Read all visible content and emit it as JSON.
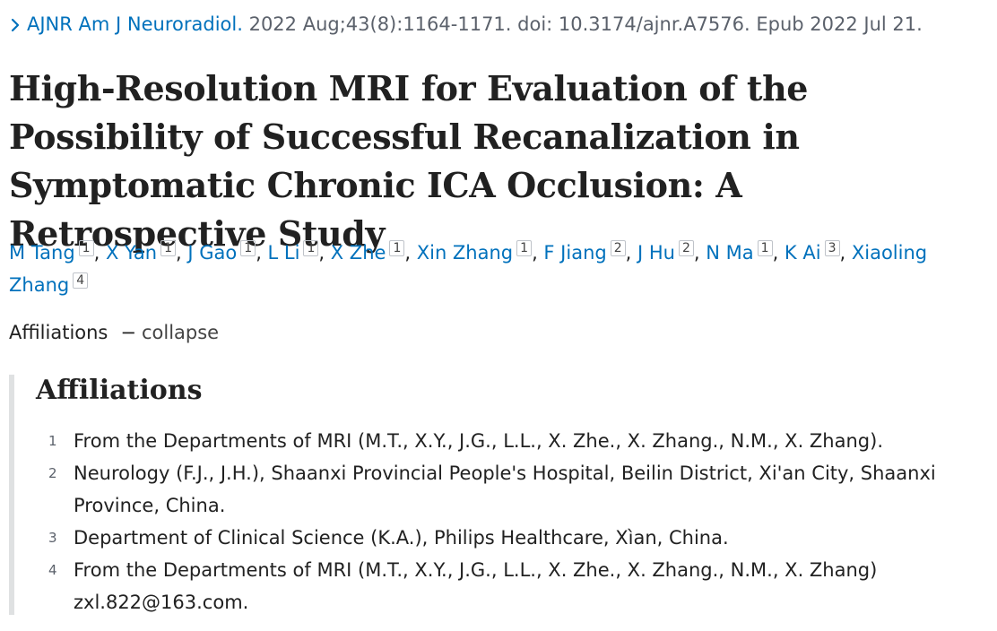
{
  "citation": {
    "journal": "AJNR Am J Neuroradiol.",
    "details": "2022 Aug;43(8):1164-1171. doi: 10.3174/ajnr.A7576. Epub 2022 Jul 21."
  },
  "title": "High-Resolution MRI for Evaluation of the Possibility of Successful Recanalization in Symptomatic Chronic ICA Occlusion: A Retrospective Study",
  "authors": [
    {
      "name": "M Tang",
      "aff": "1"
    },
    {
      "name": "X Yan",
      "aff": "1"
    },
    {
      "name": "J Gao",
      "aff": "1"
    },
    {
      "name": "L Li",
      "aff": "1"
    },
    {
      "name": "X Zhe",
      "aff": "1"
    },
    {
      "name": "Xin Zhang",
      "aff": "1"
    },
    {
      "name": "F Jiang",
      "aff": "2"
    },
    {
      "name": "J Hu",
      "aff": "2"
    },
    {
      "name": "N Ma",
      "aff": "1"
    },
    {
      "name": "K Ai",
      "aff": "3"
    },
    {
      "name": "Xiaoling Zhang",
      "aff": "4"
    }
  ],
  "affiliations_toggle": {
    "label": "Affiliations",
    "dash": "−",
    "action": "collapse"
  },
  "affiliations": {
    "heading": "Affiliations",
    "items": [
      {
        "num": "1",
        "text": "From the Departments of MRI (M.T., X.Y., J.G., L.L., X. Zhe., X. Zhang., N.M., X. Zhang)."
      },
      {
        "num": "2",
        "text": "Neurology (F.J., J.H.), Shaanxi Provincial People's Hospital, Beilin District, Xi'an City, Shaanxi Province, China."
      },
      {
        "num": "3",
        "text": "Department of Clinical Science (K.A.), Philips Healthcare, Xìan, China."
      },
      {
        "num": "4",
        "text": "From the Departments of MRI (M.T., X.Y., J.G., L.L., X. Zhe., X. Zhang., N.M., X. Zhang) zxl.822@163.com."
      }
    ]
  },
  "colors": {
    "link": "#0071bc",
    "text": "#212121",
    "muted": "#5b616b",
    "aff_border": "#dfe1e2"
  },
  "icons": {
    "citation_chevron": "chevron-right-icon"
  }
}
